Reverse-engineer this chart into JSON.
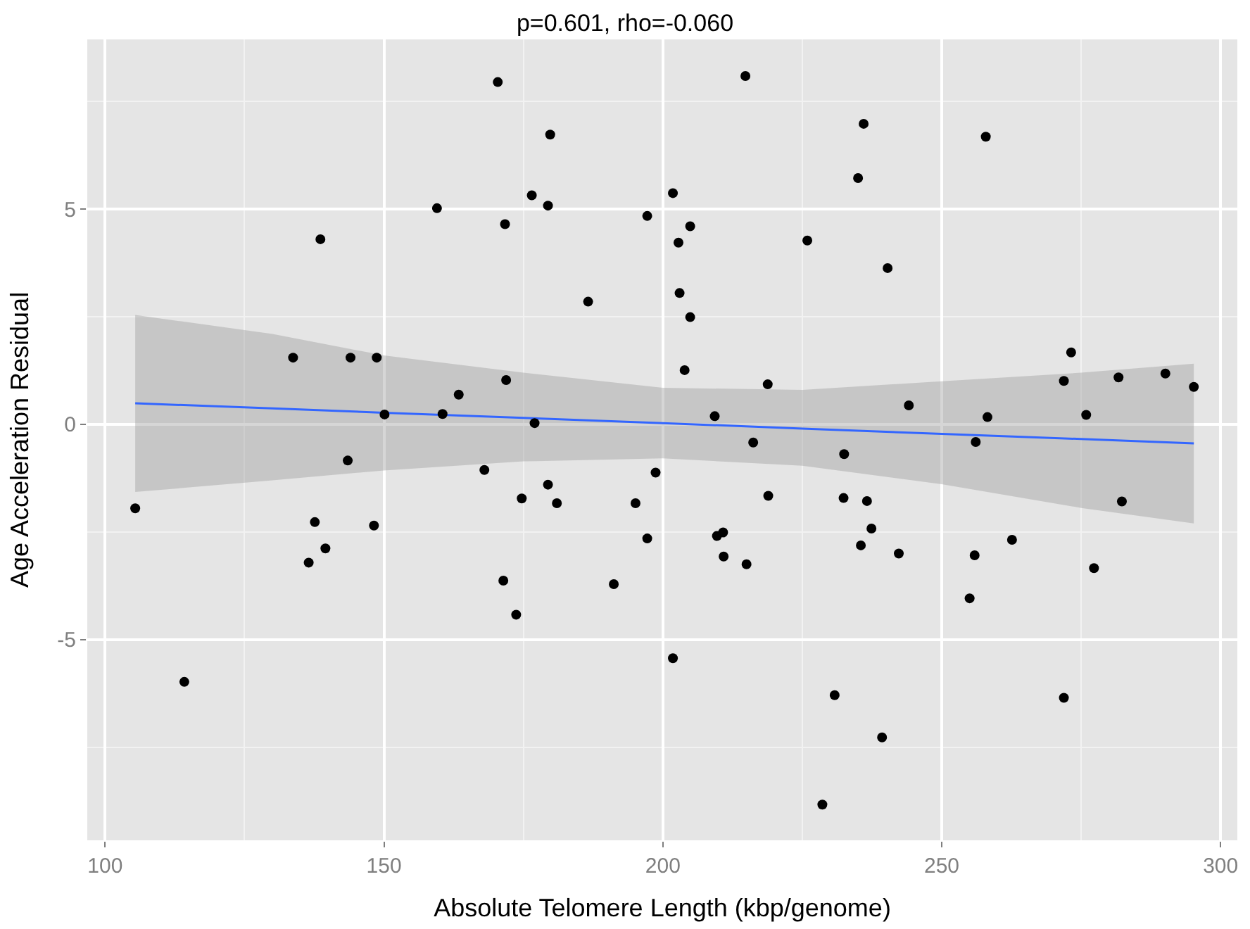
{
  "chart_data": {
    "type": "scatter",
    "title": "p=0.601, rho=-0.060",
    "xlabel": "Absolute Telomere Length (kbp/genome)",
    "ylabel": "Age Acceleration Residual",
    "xlim": [
      96.8,
      303
    ],
    "ylim": [
      -9.66,
      8.94
    ],
    "xticks": [
      100,
      150,
      200,
      250,
      300
    ],
    "yticks": [
      -5,
      0,
      5
    ],
    "grid": true,
    "marker": "circle",
    "series": [
      {
        "color": "#000000",
        "x": [
          105.4,
          114.2,
          133.7,
          138.6,
          144.0,
          148.7,
          150.1,
          159.5,
          160.5,
          163.4,
          170.4,
          171.7,
          171.9,
          176.5,
          177.0,
          179.4,
          179.8,
          186.6,
          197.2,
          201.8,
          204.9,
          202.8,
          203.0,
          204.9,
          203.9,
          218.8,
          209.3,
          214.8,
          235.0,
          236.0,
          225.9,
          240.3,
          244.1,
          257.9,
          258.2,
          273.2,
          271.9,
          281.7,
          275.9,
          290.1,
          295.2,
          216.2,
          232.5,
          256.1,
          282.3,
          218.9,
          232.4,
          236.6,
          237.4,
          235.5,
          242.3,
          209.7,
          210.8,
          210.9,
          215.0,
          255.9,
          262.6,
          255.0,
          277.3,
          201.8,
          230.8,
          239.3,
          228.6,
          271.9,
          143.5,
          137.6,
          139.5,
          136.5,
          148.2,
          168.0,
          179.4,
          174.7,
          181.0,
          171.4,
          173.7,
          191.2,
          195.1,
          197.2,
          198.7
        ],
        "values": [
          -1.95,
          -5.98,
          1.55,
          4.3,
          1.55,
          1.55,
          0.23,
          5.02,
          0.24,
          0.69,
          7.95,
          4.65,
          1.03,
          5.32,
          0.03,
          5.08,
          6.73,
          2.85,
          4.84,
          5.37,
          4.6,
          4.22,
          3.05,
          2.49,
          1.26,
          0.93,
          0.19,
          8.09,
          5.72,
          6.98,
          4.27,
          3.63,
          0.44,
          6.68,
          0.17,
          1.67,
          1.01,
          1.09,
          0.22,
          1.18,
          0.87,
          -0.42,
          -0.69,
          -0.41,
          -1.79,
          -1.66,
          -1.71,
          -1.78,
          -2.42,
          -2.81,
          -3.0,
          -2.59,
          -2.51,
          -3.07,
          -3.25,
          -3.04,
          -2.68,
          -4.04,
          -3.34,
          -5.43,
          -6.29,
          -7.27,
          -8.83,
          -6.35,
          -0.84,
          -2.27,
          -2.88,
          -3.21,
          -2.35,
          -1.06,
          -1.4,
          -1.72,
          -1.83,
          -3.63,
          -4.42,
          -3.71,
          -1.83,
          -2.65,
          -1.12
        ]
      },
      {
        "type": "line",
        "color": "#3366ff",
        "line_style": "solid",
        "marker": "none",
        "x": [
          105.4,
          130,
          150,
          175,
          200,
          225,
          250,
          275,
          295.2
        ],
        "values": [
          0.49,
          0.37,
          0.27,
          0.15,
          0.03,
          -0.1,
          -0.22,
          -0.34,
          -0.44
        ],
        "upper": [
          2.54,
          2.1,
          1.6,
          1.2,
          0.85,
          0.8,
          1.0,
          1.2,
          1.41
        ],
        "lower": [
          -1.57,
          -1.3,
          -1.07,
          -0.86,
          -0.79,
          -0.96,
          -1.39,
          -1.94,
          -2.3
        ]
      }
    ]
  }
}
